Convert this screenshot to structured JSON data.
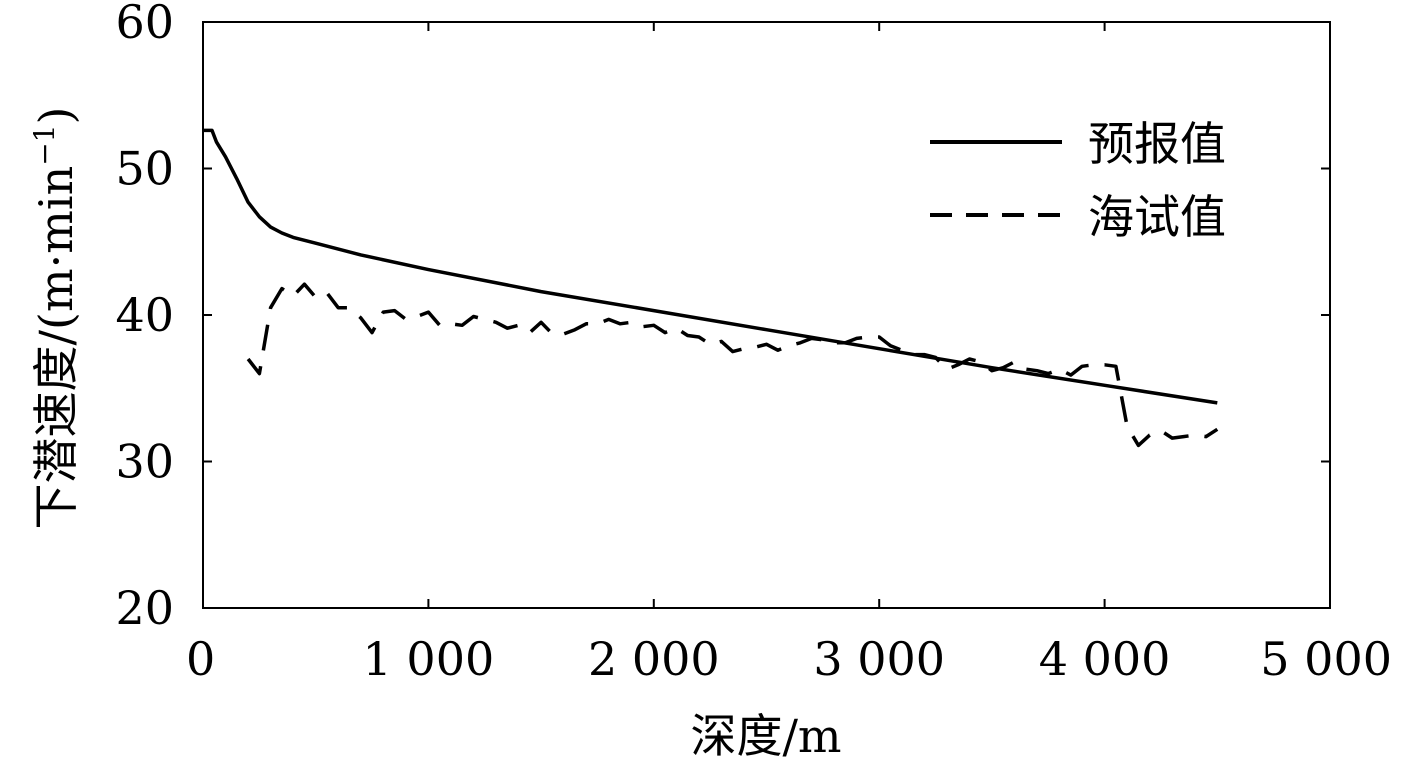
{
  "chart_data": {
    "type": "line",
    "title": "",
    "xlabel": "深度/m",
    "ylabel": "下潜速度/(m·min",
    "ylabel_sup": "−1",
    "ylabel_close": ")",
    "xlim": [
      0,
      5000
    ],
    "ylim": [
      20,
      60
    ],
    "x_ticks": [
      0,
      1000,
      2000,
      3000,
      4000,
      5000
    ],
    "x_tick_labels": [
      "0",
      "1 000",
      "2 000",
      "3 000",
      "4 000",
      "5 000"
    ],
    "y_ticks": [
      20,
      30,
      40,
      50,
      60
    ],
    "y_tick_labels": [
      "20",
      "30",
      "40",
      "50",
      "60"
    ],
    "grid": false,
    "legend_position": "top-right",
    "series": [
      {
        "name": "预报值",
        "style": "solid",
        "color": "#000000",
        "x": [
          0,
          40,
          60,
          100,
          150,
          200,
          250,
          300,
          350,
          400,
          500,
          700,
          1000,
          1500,
          2000,
          2500,
          3000,
          3500,
          4000,
          4500
        ],
        "y": [
          52.6,
          52.6,
          51.8,
          50.8,
          49.3,
          47.7,
          46.7,
          46.0,
          45.6,
          45.3,
          44.9,
          44.1,
          43.1,
          41.6,
          40.3,
          39.0,
          37.7,
          36.4,
          35.2,
          34.0
        ]
      },
      {
        "name": "海试值",
        "style": "dashed",
        "color": "#000000",
        "x": [
          200,
          250,
          300,
          350,
          400,
          450,
          500,
          550,
          600,
          650,
          700,
          750,
          800,
          850,
          900,
          950,
          1000,
          1050,
          1100,
          1150,
          1200,
          1250,
          1300,
          1350,
          1400,
          1450,
          1500,
          1550,
          1600,
          1650,
          1700,
          1750,
          1800,
          1850,
          1900,
          1950,
          2000,
          2050,
          2100,
          2150,
          2200,
          2250,
          2300,
          2350,
          2400,
          2450,
          2500,
          2550,
          2600,
          2650,
          2700,
          2750,
          2800,
          2850,
          2900,
          2950,
          3000,
          3050,
          3100,
          3150,
          3200,
          3250,
          3300,
          3350,
          3400,
          3450,
          3500,
          3550,
          3600,
          3650,
          3700,
          3750,
          3800,
          3850,
          3900,
          3950,
          4000,
          4050,
          4100,
          4150,
          4200,
          4250,
          4300,
          4350,
          4400,
          4450,
          4500
        ],
        "y": [
          37.0,
          36.0,
          40.5,
          41.8,
          41.3,
          42.1,
          41.2,
          41.5,
          40.5,
          40.5,
          39.8,
          38.8,
          40.2,
          40.3,
          39.7,
          39.9,
          40.2,
          39.3,
          39.4,
          39.3,
          39.9,
          39.7,
          39.5,
          39.1,
          39.3,
          38.8,
          39.5,
          38.7,
          38.7,
          39.0,
          39.4,
          39.4,
          39.7,
          39.4,
          39.5,
          39.2,
          39.3,
          38.8,
          39.1,
          38.6,
          38.5,
          38.0,
          38.2,
          37.5,
          37.7,
          37.8,
          38.0,
          37.6,
          37.9,
          38.1,
          38.4,
          38.3,
          38.1,
          38.1,
          38.4,
          38.5,
          38.5,
          37.9,
          37.6,
          37.3,
          37.3,
          37.1,
          36.3,
          36.6,
          37.0,
          36.8,
          36.2,
          36.4,
          36.8,
          36.3,
          36.2,
          36.0,
          36.3,
          35.9,
          36.5,
          36.6,
          36.6,
          36.5,
          32.4,
          31.1,
          31.8,
          32.1,
          31.6,
          31.7,
          31.8,
          31.7,
          32.2
        ]
      }
    ]
  }
}
